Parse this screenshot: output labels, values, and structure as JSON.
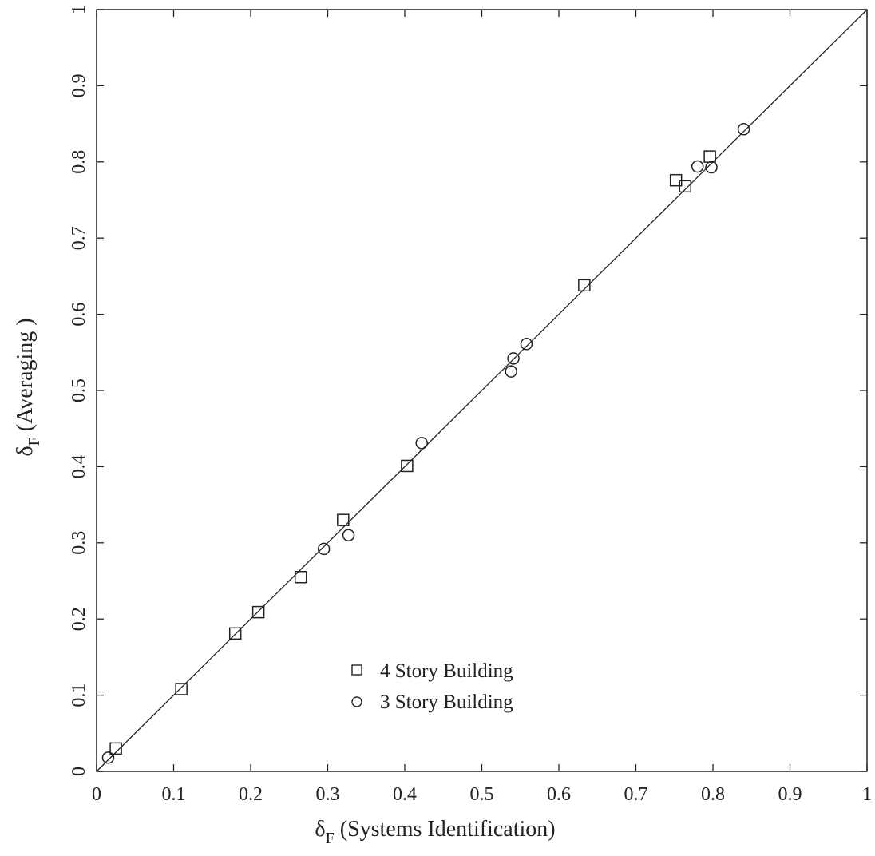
{
  "chart_data": {
    "type": "scatter",
    "title": "",
    "xlabel": {
      "symbol": "δ",
      "subscript": "F",
      "text": " (Systems Identification)"
    },
    "ylabel": {
      "symbol": "δ",
      "subscript": "F",
      "text": " (Averaging )"
    },
    "xlim": [
      0,
      1
    ],
    "ylim": [
      0,
      1
    ],
    "xticks": [
      0,
      0.1,
      0.2,
      0.3,
      0.4,
      0.5,
      0.6,
      0.7,
      0.8,
      0.9,
      1
    ],
    "yticks": [
      0,
      0.1,
      0.2,
      0.3,
      0.4,
      0.5,
      0.6,
      0.7,
      0.8,
      0.9,
      1
    ],
    "x_tick_labels": [
      "0",
      "0.1",
      "0.2",
      "0.3",
      "0.4",
      "0.5",
      "0.6",
      "0.7",
      "0.8",
      "0.9",
      "1"
    ],
    "y_tick_labels": [
      "0",
      "0.1",
      "0.2",
      "0.3",
      "0.4",
      "0.5",
      "0.6",
      "0.7",
      "0.8",
      "0.9",
      "1"
    ],
    "grid": false,
    "legend_position": "lower-center",
    "reference_line": {
      "from": [
        0,
        0
      ],
      "to": [
        1,
        1
      ]
    },
    "series": [
      {
        "name": "4 Story Building",
        "marker": "square",
        "points": [
          [
            0.025,
            0.03
          ],
          [
            0.11,
            0.108
          ],
          [
            0.18,
            0.181
          ],
          [
            0.21,
            0.209
          ],
          [
            0.265,
            0.255
          ],
          [
            0.32,
            0.33
          ],
          [
            0.403,
            0.401
          ],
          [
            0.633,
            0.638
          ],
          [
            0.752,
            0.776
          ],
          [
            0.764,
            0.768
          ],
          [
            0.796,
            0.807
          ]
        ]
      },
      {
        "name": "3 Story Building",
        "marker": "circle",
        "points": [
          [
            0.015,
            0.018
          ],
          [
            0.295,
            0.292
          ],
          [
            0.327,
            0.31
          ],
          [
            0.422,
            0.431
          ],
          [
            0.538,
            0.525
          ],
          [
            0.541,
            0.542
          ],
          [
            0.558,
            0.561
          ],
          [
            0.78,
            0.794
          ],
          [
            0.798,
            0.793
          ],
          [
            0.84,
            0.843
          ]
        ]
      }
    ]
  }
}
